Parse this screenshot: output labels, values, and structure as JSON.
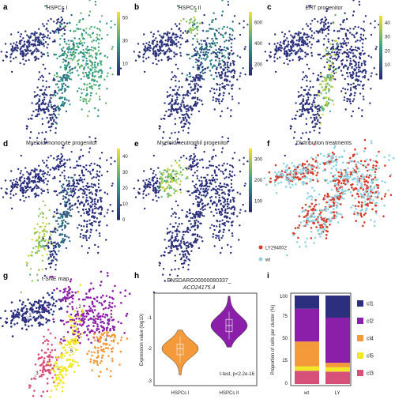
{
  "chart_data": [
    {
      "panel": "a",
      "type": "scatter",
      "title": "HSPCs I",
      "colorbar": {
        "ticks": [
          10,
          30,
          50
        ],
        "range": [
          0,
          55
        ],
        "colors": [
          "#2a2a7a",
          "#2fa38a",
          "#f2e02a"
        ]
      },
      "legend_placement": "right"
    },
    {
      "panel": "b",
      "type": "scatter",
      "title": "HSPCs II",
      "colorbar": {
        "ticks": [
          200,
          400,
          600
        ],
        "range": [
          100,
          700
        ],
        "colors": [
          "#2a2a7a",
          "#2fa38a",
          "#f2e02a"
        ]
      },
      "legend_placement": "right"
    },
    {
      "panel": "c",
      "type": "scatter",
      "title": "EHT progenitor",
      "colorbar": {
        "ticks": [
          10,
          20,
          30,
          40
        ],
        "range": [
          0,
          45
        ],
        "colors": [
          "#2a2a7a",
          "#2fa38a",
          "#f2e02a"
        ]
      },
      "legend_placement": "right"
    },
    {
      "panel": "d",
      "type": "scatter",
      "title": "Myeloid/monocyte progenitor",
      "colorbar": {
        "ticks": [
          0,
          10,
          20,
          30,
          40
        ],
        "range": [
          0,
          45
        ],
        "colors": [
          "#2a2a7a",
          "#2fa38a",
          "#f2e02a"
        ]
      },
      "legend_placement": "right"
    },
    {
      "panel": "e",
      "type": "scatter",
      "title": "Myeloid/neutrophil progenitor",
      "colorbar": {
        "ticks": [
          100,
          200,
          300
        ],
        "range": [
          50,
          350
        ],
        "colors": [
          "#2a2a7a",
          "#2fa38a",
          "#f2e02a"
        ]
      },
      "legend_placement": "right"
    },
    {
      "panel": "f",
      "type": "scatter",
      "title": "Distribution treatments",
      "legend": [
        {
          "name": "LY294002",
          "color": "#d93a2a"
        },
        {
          "name": "wt",
          "color": "#8fd3e0"
        }
      ],
      "legend_placement": "bottom-left"
    },
    {
      "panel": "g",
      "type": "scatter",
      "title": "t-SNE map",
      "clusters": [
        {
          "name": "cl1",
          "color": "#2b2f7d"
        },
        {
          "name": "cl2",
          "color": "#8b1fa9"
        },
        {
          "name": "cl3",
          "color": "#d6507a"
        },
        {
          "name": "cl4",
          "color": "#f59a3a"
        },
        {
          "name": "cl5",
          "color": "#f2e82a"
        }
      ],
      "cluster_labels": [
        "1",
        "2",
        "3",
        "4",
        "5"
      ]
    },
    {
      "panel": "h",
      "type": "violin",
      "title": "ENSDARG00000080337_",
      "subtitle": "ACO24175.4",
      "categories": [
        "HSPCs I",
        "HSPCs II"
      ],
      "ylabel": "Expression value (log10)",
      "yticks": [
        -1,
        -2,
        -3
      ],
      "ylim": [
        -3.2,
        -0.2
      ],
      "annotation": "t-test, p<2.2e-16",
      "series": [
        {
          "name": "HSPCs I",
          "color": "#f59a3a",
          "median": -2.0,
          "q1": -2.2,
          "q3": -1.85,
          "min": -2.85,
          "max": -1.4
        },
        {
          "name": "HSPCs II",
          "color": "#8b1fa9",
          "median": -1.25,
          "q1": -1.45,
          "q3": -1.05,
          "min": -1.95,
          "max": -0.3
        }
      ]
    },
    {
      "panel": "i",
      "type": "bar",
      "stacked": true,
      "ylabel": "Proportion of cells per cluster (%)",
      "yticks": [
        0,
        25,
        50,
        75,
        100
      ],
      "ylim": [
        0,
        100
      ],
      "categories": [
        "wt",
        "LY"
      ],
      "series": [
        {
          "name": "cl3",
          "color": "#d6507a",
          "values": [
            15,
            14
          ]
        },
        {
          "name": "cl5",
          "color": "#f2e82a",
          "values": [
            5,
            5
          ]
        },
        {
          "name": "cl4",
          "color": "#f59a3a",
          "values": [
            28,
            5
          ]
        },
        {
          "name": "cl2",
          "color": "#8b1fa9",
          "values": [
            37,
            51
          ]
        },
        {
          "name": "cl1",
          "color": "#2b2f7d",
          "values": [
            15,
            25
          ]
        }
      ],
      "legend_order": [
        "cl1",
        "cl2",
        "cl4",
        "cl5",
        "cl3"
      ],
      "legend_placement": "right"
    }
  ],
  "labels": {
    "a": "a",
    "b": "b",
    "c": "c",
    "d": "d",
    "e": "e",
    "f": "f",
    "g": "g",
    "h": "h",
    "i": "i"
  }
}
